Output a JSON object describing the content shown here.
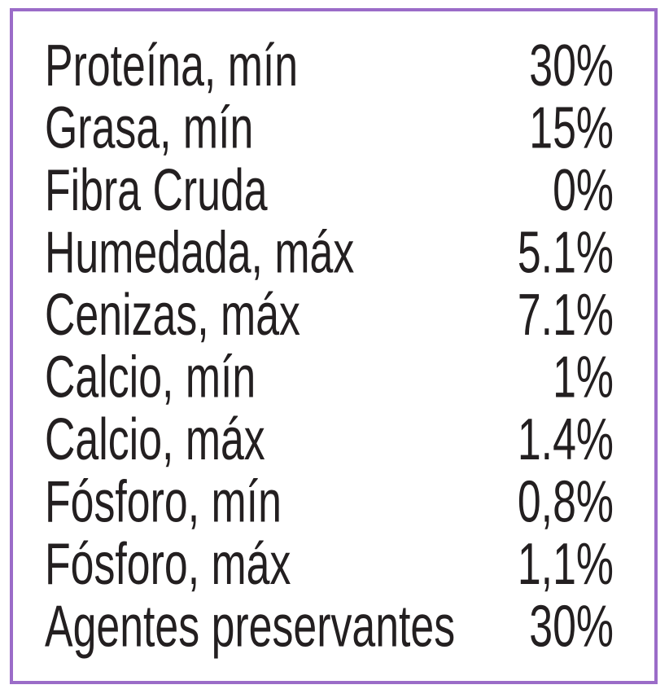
{
  "table": {
    "rows": [
      [
        "Proteína, mín",
        "30%"
      ],
      [
        "Grasa, mín",
        "15%"
      ],
      [
        "Fibra Cruda",
        "0%"
      ],
      [
        "Humedada, máx",
        "5.1%"
      ],
      [
        "Cenizas, máx",
        "7.1%"
      ],
      [
        "Calcio, mín",
        "1%"
      ],
      [
        "Calcio, máx",
        "1.4%"
      ],
      [
        "Fósforo, mín",
        "0,8%"
      ],
      [
        "Fósforo, máx",
        "1,1%"
      ],
      [
        "Agentes preservantes",
        "30%"
      ]
    ]
  }
}
